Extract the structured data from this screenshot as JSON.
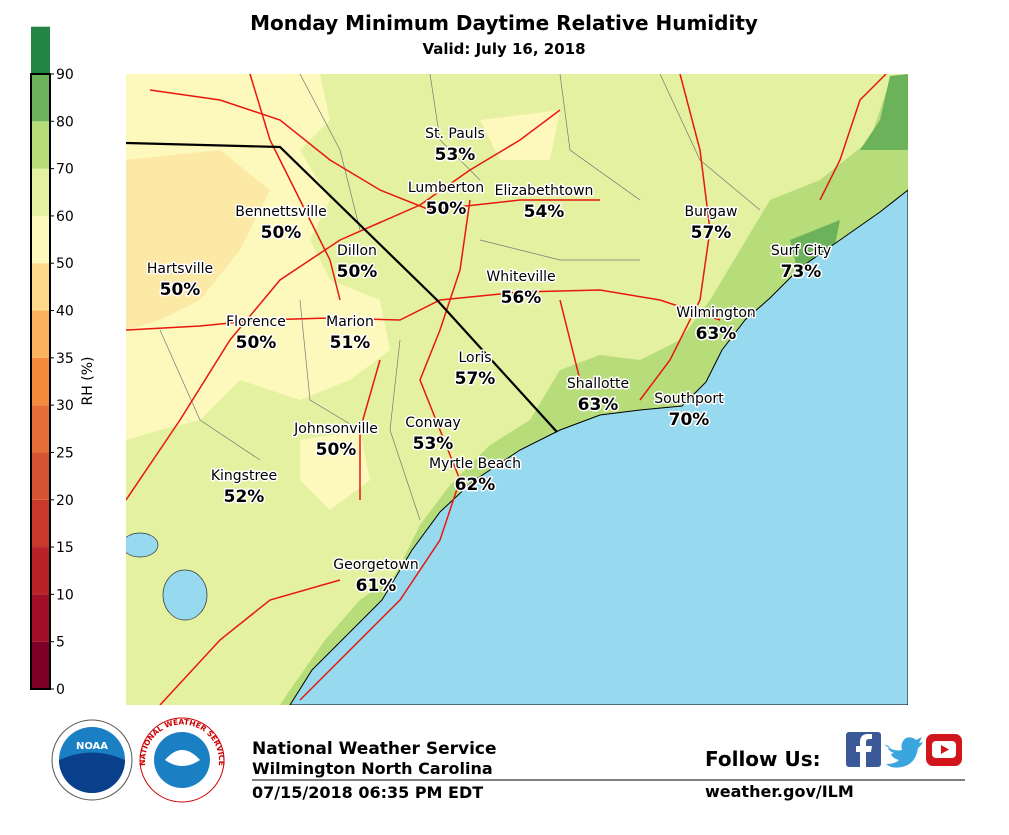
{
  "header": {
    "title": "Monday Minimum Daytime Relative Humidity",
    "subtitle": "Valid: July 16, 2018"
  },
  "colorbar": {
    "label": "RH (%)",
    "ticks": [
      0,
      5,
      10,
      15,
      20,
      25,
      30,
      35,
      40,
      50,
      60,
      70,
      80,
      90
    ],
    "colors": [
      "#7f0026",
      "#a00f26",
      "#b82228",
      "#c8382b",
      "#d75433",
      "#e66f38",
      "#f48a3c",
      "#fbb25e",
      "#fdd98a",
      "#fdf8bb",
      "#e4f1a0",
      "#b7dd7a",
      "#6cb25a",
      "#238444"
    ]
  },
  "cities": [
    {
      "name": "St. Pauls",
      "value": "53%"
    },
    {
      "name": "Lumberton",
      "value": "50%"
    },
    {
      "name": "Elizabethtown",
      "value": "54%"
    },
    {
      "name": "Bennettsville",
      "value": "50%"
    },
    {
      "name": "Dillon",
      "value": "50%"
    },
    {
      "name": "Burgaw",
      "value": "57%"
    },
    {
      "name": "Surf City",
      "value": "73%"
    },
    {
      "name": "Hartsville",
      "value": "50%"
    },
    {
      "name": "Whiteville",
      "value": "56%"
    },
    {
      "name": "Wilmington",
      "value": "63%"
    },
    {
      "name": "Florence",
      "value": "50%"
    },
    {
      "name": "Marion",
      "value": "51%"
    },
    {
      "name": "Loris",
      "value": "57%"
    },
    {
      "name": "Shallotte",
      "value": "63%"
    },
    {
      "name": "Southport",
      "value": "70%"
    },
    {
      "name": "Johnsonville",
      "value": "50%"
    },
    {
      "name": "Conway",
      "value": "53%"
    },
    {
      "name": "Myrtle Beach",
      "value": "62%"
    },
    {
      "name": "Kingstree",
      "value": "52%"
    },
    {
      "name": "Georgetown",
      "value": "61%"
    }
  ],
  "footer": {
    "logo_noaa": "NOAA",
    "logo_nws": "NATIONAL WEATHER SERVICE",
    "office": "National Weather Service",
    "location": "Wilmington North Carolina",
    "timestamp": "07/15/2018 06:35 PM EDT",
    "follow": "Follow Us:",
    "url": "weather.gov/ILM"
  }
}
